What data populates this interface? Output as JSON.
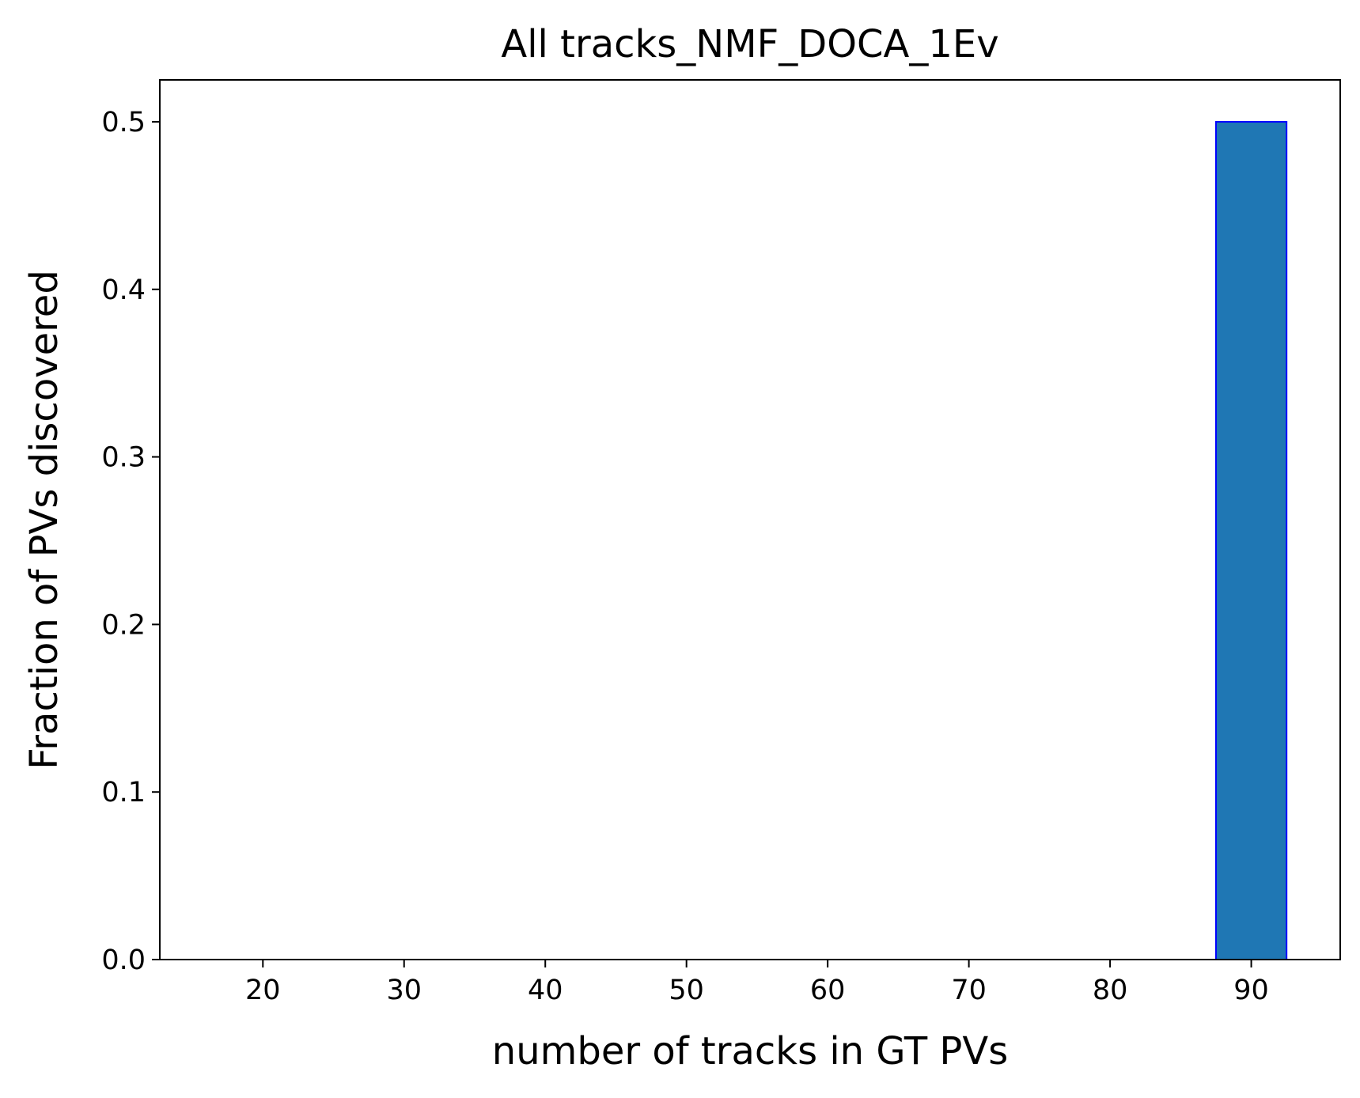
{
  "chart_data": {
    "type": "bar",
    "title": "All tracks_NMF_DOCA_1Ev",
    "xlabel": "number of tracks in GT PVs",
    "ylabel": "Fraction of PVs discovered",
    "xlim": [
      12.7,
      96.3
    ],
    "ylim": [
      0,
      0.525
    ],
    "xticks": [
      20,
      30,
      40,
      50,
      60,
      70,
      80,
      90
    ],
    "yticks": [
      0.0,
      0.1,
      0.2,
      0.3,
      0.4,
      0.5
    ],
    "ytick_labels": [
      "0.0",
      "0.1",
      "0.2",
      "0.3",
      "0.4",
      "0.5"
    ],
    "bar_width": 5,
    "bars": [
      {
        "x": 19,
        "value": 0.0
      },
      {
        "x": 90,
        "value": 0.5
      }
    ],
    "grid": false,
    "legend": "none",
    "colors": {
      "bar_fill": "#1f77b4",
      "bar_edge": "#0000ff"
    }
  }
}
